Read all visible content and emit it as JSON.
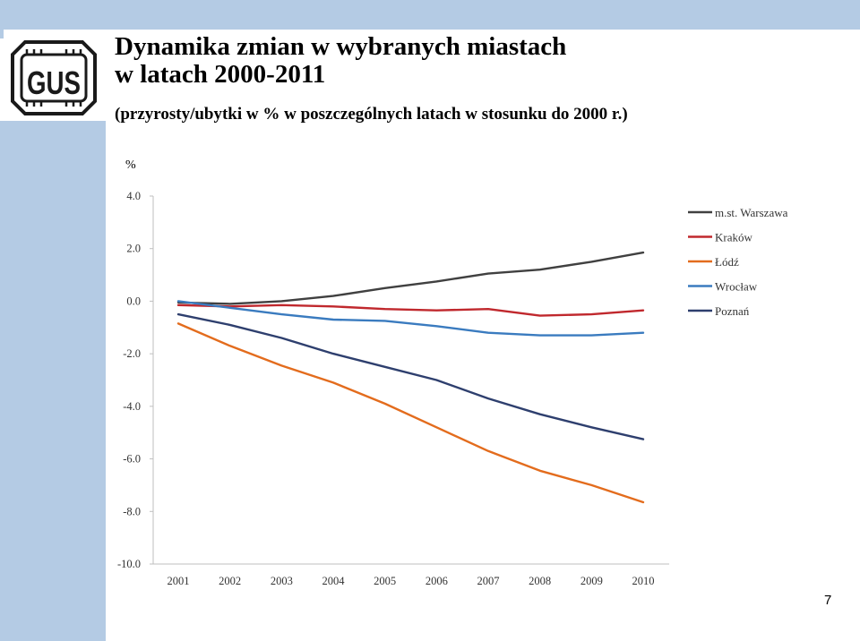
{
  "header": {
    "title_line1": "Dynamika zmian w wybranych miastach",
    "title_line2": "w latach 2000-2011",
    "subtitle": "(przyrosty/ubytki w % w poszczególnych latach w stosunku do 2000 r.)"
  },
  "logo": {
    "text": "GUS"
  },
  "page_number": "7",
  "colors": {
    "band": "#b4cbe4"
  },
  "chart_data": {
    "type": "line",
    "unit_label": "%",
    "x": [
      "2001",
      "2002",
      "2003",
      "2004",
      "2005",
      "2006",
      "2007",
      "2008",
      "2009",
      "2010"
    ],
    "ylim": [
      -10.0,
      4.0
    ],
    "yticks": [
      "4.0",
      "2.0",
      "0.0",
      "-2.0",
      "-4.0",
      "-6.0",
      "-8.0",
      "-10.0"
    ],
    "grid": false,
    "legend_position": "right",
    "series": [
      {
        "name": "m.st. Warszawa",
        "color": "#404040",
        "values": [
          -0.05,
          -0.1,
          0.0,
          0.2,
          0.5,
          0.75,
          1.05,
          1.2,
          1.5,
          1.85
        ]
      },
      {
        "name": "Kraków",
        "color": "#c0282d",
        "values": [
          -0.15,
          -0.2,
          -0.15,
          -0.2,
          -0.3,
          -0.35,
          -0.3,
          -0.55,
          -0.5,
          -0.35
        ]
      },
      {
        "name": "Łódź",
        "color": "#e36c1d",
        "values": [
          -0.85,
          -1.7,
          -2.45,
          -3.1,
          -3.9,
          -4.8,
          -5.7,
          -6.45,
          -7.0,
          -7.65
        ]
      },
      {
        "name": "Wrocław",
        "color": "#3a7bbf",
        "values": [
          0.0,
          -0.25,
          -0.5,
          -0.7,
          -0.75,
          -0.95,
          -1.2,
          -1.3,
          -1.3,
          -1.2
        ]
      },
      {
        "name": "Poznań",
        "color": "#2e3f6e",
        "values": [
          -0.5,
          -0.9,
          -1.4,
          -2.0,
          -2.5,
          -3.0,
          -3.7,
          -4.3,
          -4.8,
          -5.25
        ]
      }
    ]
  }
}
